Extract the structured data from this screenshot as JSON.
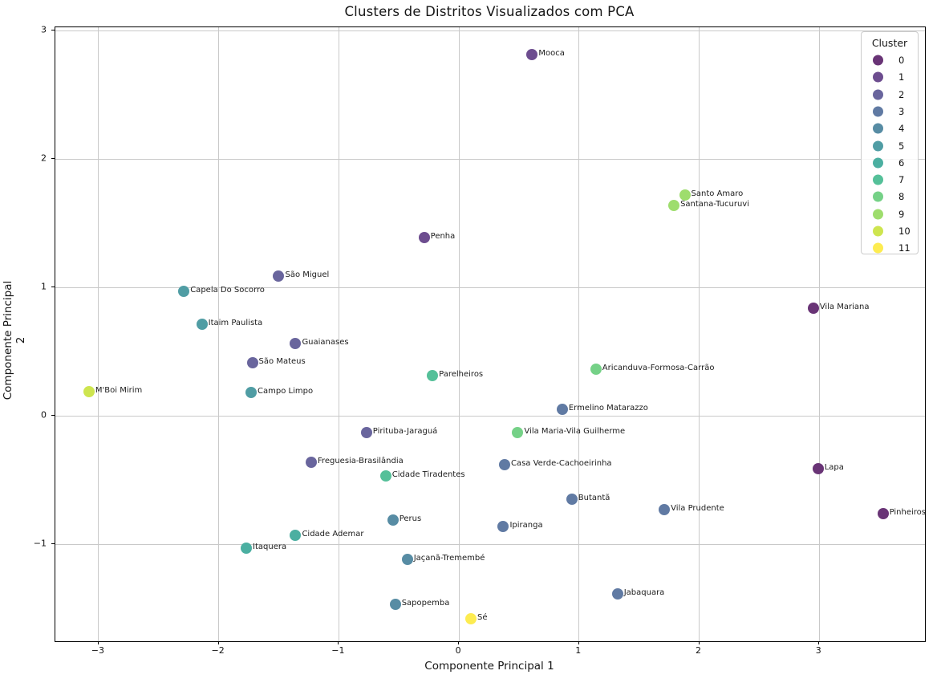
{
  "figure": {
    "title": "Clusters de Distritos Visualizados com PCA",
    "xlabel": "Componente Principal 1",
    "ylabel": "Componente Principal 2"
  },
  "chart_data": {
    "type": "scatter",
    "title": "Clusters de Distritos Visualizados com PCA",
    "xlabel": "Componente Principal 1",
    "ylabel": "Componente Principal 2",
    "xlim": [
      -3.36,
      3.88
    ],
    "ylim": [
      -1.756,
      3.025
    ],
    "grid": true,
    "xticks": {
      "values": [
        -3,
        -2,
        -1,
        0,
        1,
        2,
        3
      ],
      "labels": [
        "−3",
        "−2",
        "−1",
        "0",
        "1",
        "2",
        "3"
      ]
    },
    "yticks": {
      "values": [
        -1,
        0,
        1,
        2,
        3
      ],
      "labels": [
        "−1",
        "0",
        "1",
        "2",
        "3"
      ]
    },
    "legend": {
      "title": "Cluster",
      "position": "upper right",
      "entries": [
        {
          "label": "0",
          "color": "#693476"
        },
        {
          "label": "1",
          "color": "#6d4d8f"
        },
        {
          "label": "2",
          "color": "#69659d"
        },
        {
          "label": "3",
          "color": "#607aa3"
        },
        {
          "label": "4",
          "color": "#578ca4"
        },
        {
          "label": "5",
          "color": "#509da4"
        },
        {
          "label": "6",
          "color": "#4bafa1"
        },
        {
          "label": "7",
          "color": "#55c099"
        },
        {
          "label": "8",
          "color": "#75d187"
        },
        {
          "label": "9",
          "color": "#9edd6d"
        },
        {
          "label": "10",
          "color": "#cee54f"
        },
        {
          "label": "11",
          "color": "#fdec51"
        }
      ]
    },
    "points": [
      {
        "label": "Mooca",
        "x": 0.61,
        "y": 2.81,
        "cluster": 1
      },
      {
        "label": "Santo Amaro",
        "x": 1.88,
        "y": 1.72,
        "cluster": 9
      },
      {
        "label": "Santana-Tucuruvi",
        "x": 1.79,
        "y": 1.64,
        "cluster": 9
      },
      {
        "label": "Penha",
        "x": -0.29,
        "y": 1.39,
        "cluster": 1
      },
      {
        "label": "São Miguel",
        "x": -1.5,
        "y": 1.09,
        "cluster": 2
      },
      {
        "label": "Capela Do Socorro",
        "x": -2.29,
        "y": 0.97,
        "cluster": 5
      },
      {
        "label": "Vila Mariana",
        "x": 2.95,
        "y": 0.84,
        "cluster": 0
      },
      {
        "label": "Itaim Paulista",
        "x": -2.14,
        "y": 0.71,
        "cluster": 5
      },
      {
        "label": "Guaianases",
        "x": -1.36,
        "y": 0.56,
        "cluster": 2
      },
      {
        "label": "São Mateus",
        "x": -1.72,
        "y": 0.41,
        "cluster": 2
      },
      {
        "label": "Aricanduva-Formosa-Carrão",
        "x": 1.14,
        "y": 0.36,
        "cluster": 8
      },
      {
        "label": "Parelheiros",
        "x": -0.22,
        "y": 0.31,
        "cluster": 7
      },
      {
        "label": "M'Boi Mirim",
        "x": -3.08,
        "y": 0.19,
        "cluster": 10
      },
      {
        "label": "Campo Limpo",
        "x": -1.73,
        "y": 0.18,
        "cluster": 5
      },
      {
        "label": "Ermelino Matarazzo",
        "x": 0.86,
        "y": 0.05,
        "cluster": 3
      },
      {
        "label": "Pirituba-Jaraguá",
        "x": -0.77,
        "y": -0.13,
        "cluster": 2
      },
      {
        "label": "Vila Maria-Vila Guilherme",
        "x": 0.49,
        "y": -0.13,
        "cluster": 8
      },
      {
        "label": "Freguesia-Brasilândia",
        "x": -1.23,
        "y": -0.36,
        "cluster": 2
      },
      {
        "label": "Casa Verde-Cachoeirinha",
        "x": 0.38,
        "y": -0.38,
        "cluster": 3
      },
      {
        "label": "Lapa",
        "x": 2.99,
        "y": -0.41,
        "cluster": 0
      },
      {
        "label": "Cidade Tiradentes",
        "x": -0.61,
        "y": -0.47,
        "cluster": 7
      },
      {
        "label": "Butantã",
        "x": 0.94,
        "y": -0.65,
        "cluster": 3
      },
      {
        "label": "Vila Prudente",
        "x": 1.71,
        "y": -0.73,
        "cluster": 3
      },
      {
        "label": "Pinheiros",
        "x": 3.53,
        "y": -0.76,
        "cluster": 0
      },
      {
        "label": "Perus",
        "x": -0.55,
        "y": -0.81,
        "cluster": 4
      },
      {
        "label": "Ipiranga",
        "x": 0.37,
        "y": -0.86,
        "cluster": 3
      },
      {
        "label": "Cidade Ademar",
        "x": -1.36,
        "y": -0.93,
        "cluster": 6
      },
      {
        "label": "Itaquera",
        "x": -1.77,
        "y": -1.03,
        "cluster": 6
      },
      {
        "label": "Jaçanã-Tremembé",
        "x": -0.43,
        "y": -1.12,
        "cluster": 4
      },
      {
        "label": "Jabaquara",
        "x": 1.32,
        "y": -1.39,
        "cluster": 3
      },
      {
        "label": "Sapopemba",
        "x": -0.53,
        "y": -1.47,
        "cluster": 4
      },
      {
        "label": "Sé",
        "x": 0.1,
        "y": -1.58,
        "cluster": 11
      }
    ]
  }
}
